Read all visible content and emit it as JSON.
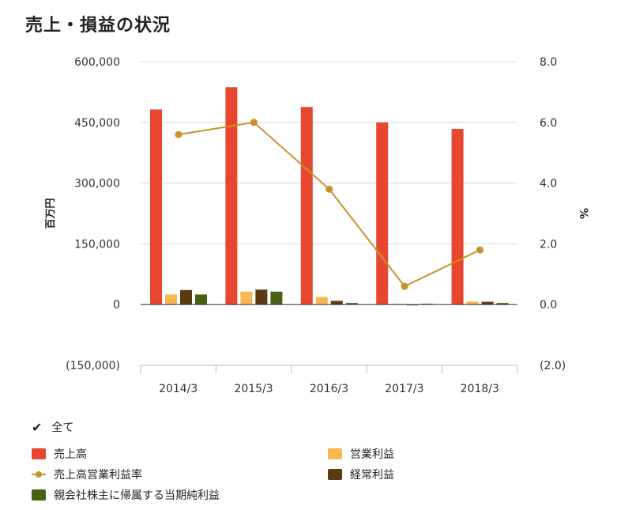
{
  "page": {
    "title": "売上・損益の状況"
  },
  "chart_data": {
    "type": "bar",
    "categories": [
      "2014/3",
      "2015/3",
      "2016/3",
      "2017/3",
      "2018/3"
    ],
    "y_left": {
      "label": "百万円",
      "ylim": [
        -150000,
        600000
      ],
      "ticks": [
        -150000,
        0,
        150000,
        300000,
        450000,
        600000
      ],
      "tick_labels": [
        "(150,000)",
        "0",
        "150,000",
        "300,000",
        "450,000",
        "600,000"
      ]
    },
    "y_right": {
      "label": "%",
      "ylim": [
        -2.0,
        8.0
      ],
      "ticks": [
        -2.0,
        0.0,
        2.0,
        4.0,
        6.0,
        8.0
      ],
      "tick_labels": [
        "(2.0)",
        "0.0",
        "2.0",
        "4.0",
        "6.0",
        "8.0"
      ]
    },
    "series": [
      {
        "name": "売上高",
        "type": "bar",
        "axis": "left",
        "color": "#e8472f",
        "values": [
          482000,
          537000,
          488000,
          450000,
          434000
        ]
      },
      {
        "name": "営業利益",
        "type": "bar",
        "axis": "left",
        "color": "#f8b84f",
        "values": [
          25000,
          32000,
          19000,
          2000,
          7500
        ]
      },
      {
        "name": "経常利益",
        "type": "bar",
        "axis": "left",
        "color": "#5c3a12",
        "values": [
          36000,
          37000,
          9000,
          -2000,
          7000
        ]
      },
      {
        "name": "親会社株主に帰属する当期純利益",
        "type": "bar",
        "axis": "left",
        "color": "#4a6112",
        "values": [
          25000,
          32000,
          4000,
          2000,
          4000
        ]
      },
      {
        "name": "売上高営業利益率",
        "type": "line",
        "axis": "right",
        "color": "#c8922a",
        "values": [
          5.6,
          6.0,
          3.8,
          0.6,
          1.8
        ]
      }
    ],
    "grid": true,
    "legend_position": "bottom"
  },
  "legend": {
    "all_label": "全て",
    "items": [
      {
        "label": "売上高",
        "color": "#e8472f",
        "kind": "bar"
      },
      {
        "label": "営業利益",
        "color": "#f8b84f",
        "kind": "bar"
      },
      {
        "label": "売上高営業利益率",
        "color": "#c8922a",
        "kind": "line"
      },
      {
        "label": "経常利益",
        "color": "#5c3a12",
        "kind": "bar"
      },
      {
        "label": "親会社株主に帰属する当期純利益",
        "color": "#4a6112",
        "kind": "bar"
      }
    ]
  }
}
